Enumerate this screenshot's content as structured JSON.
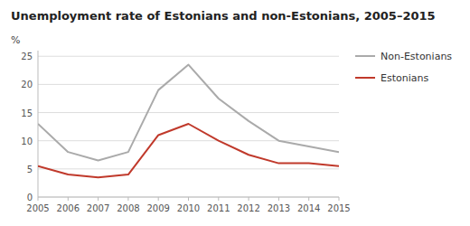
{
  "chart_data": {
    "type": "line",
    "title": "Unemployment rate of Estonians and non-Estonians, 2005–2015",
    "ylabel": "%",
    "x": [
      2005,
      2006,
      2007,
      2008,
      2009,
      2010,
      2011,
      2012,
      2013,
      2014,
      2015
    ],
    "series": [
      {
        "name": "Non-Estonians",
        "color": "#aaaaaa",
        "values": [
          13.0,
          8.0,
          6.5,
          8.0,
          19.0,
          23.5,
          17.5,
          13.5,
          10.0,
          9.0,
          8.0
        ]
      },
      {
        "name": "Estonians",
        "color": "#c0392b",
        "values": [
          5.5,
          4.0,
          3.5,
          4.0,
          11.0,
          13.0,
          10.0,
          7.5,
          6.0,
          6.0,
          5.5
        ]
      }
    ],
    "xlim": [
      2005,
      2015
    ],
    "xticks": [
      2005,
      2006,
      2007,
      2008,
      2009,
      2010,
      2011,
      2012,
      2013,
      2014,
      2015
    ],
    "ylim": [
      0,
      26
    ],
    "yticks": [
      0,
      5,
      10,
      15,
      20,
      25
    ],
    "grid": true,
    "legend": "right"
  }
}
